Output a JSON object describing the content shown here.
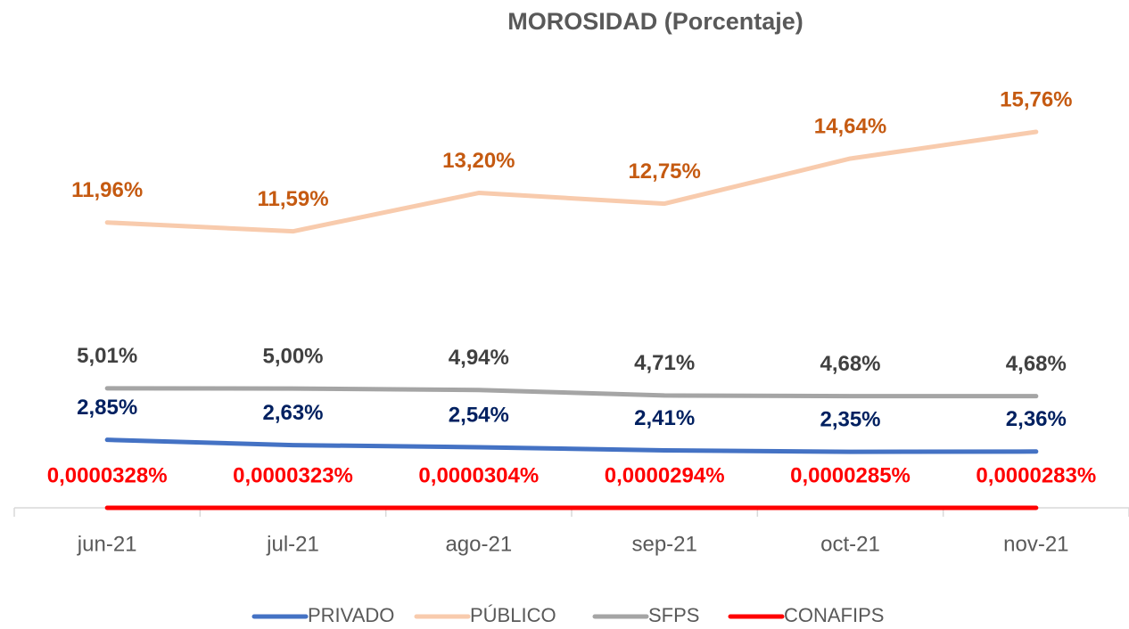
{
  "chart_data": {
    "type": "line",
    "title": "MOROSIDAD (Porcentaje)",
    "categories": [
      "jun-21",
      "jul-21",
      "ago-21",
      "sep-21",
      "oct-21",
      "nov-21"
    ],
    "ylim": [
      0,
      18
    ],
    "series": [
      {
        "name": "PRIVADO",
        "color": "#4472c4",
        "label_color": "#002060",
        "values": [
          2.85,
          2.63,
          2.54,
          2.41,
          2.35,
          2.36
        ],
        "value_labels": [
          "2,85%",
          "2,63%",
          "2,54%",
          "2,41%",
          "2,35%",
          "2,36%"
        ]
      },
      {
        "name": "PÚBLICO",
        "color": "#f8cbad",
        "label_color": "#c55a11",
        "values": [
          11.96,
          11.59,
          13.2,
          12.75,
          14.64,
          15.76
        ],
        "value_labels": [
          "11,96%",
          "11,59%",
          "13,20%",
          "12,75%",
          "14,64%",
          "15,76%"
        ]
      },
      {
        "name": "SFPS",
        "color": "#a5a5a5",
        "label_color": "#404040",
        "values": [
          5.01,
          5.0,
          4.94,
          4.71,
          4.68,
          4.68
        ],
        "value_labels": [
          "5,01%",
          "5,00%",
          "4,94%",
          "4,71%",
          "4,68%",
          "4,68%"
        ]
      },
      {
        "name": "CONAFIPS",
        "color": "#ff0000",
        "label_color": "#ff0000",
        "values": [
          3.28e-05,
          3.23e-05,
          3.04e-05,
          2.94e-05,
          2.85e-05,
          2.83e-05
        ],
        "value_labels": [
          "0,0000328%",
          "0,0000323%",
          "0,0000304%",
          "0,0000294%",
          "0,0000285%",
          "0,0000283%"
        ]
      }
    ]
  }
}
